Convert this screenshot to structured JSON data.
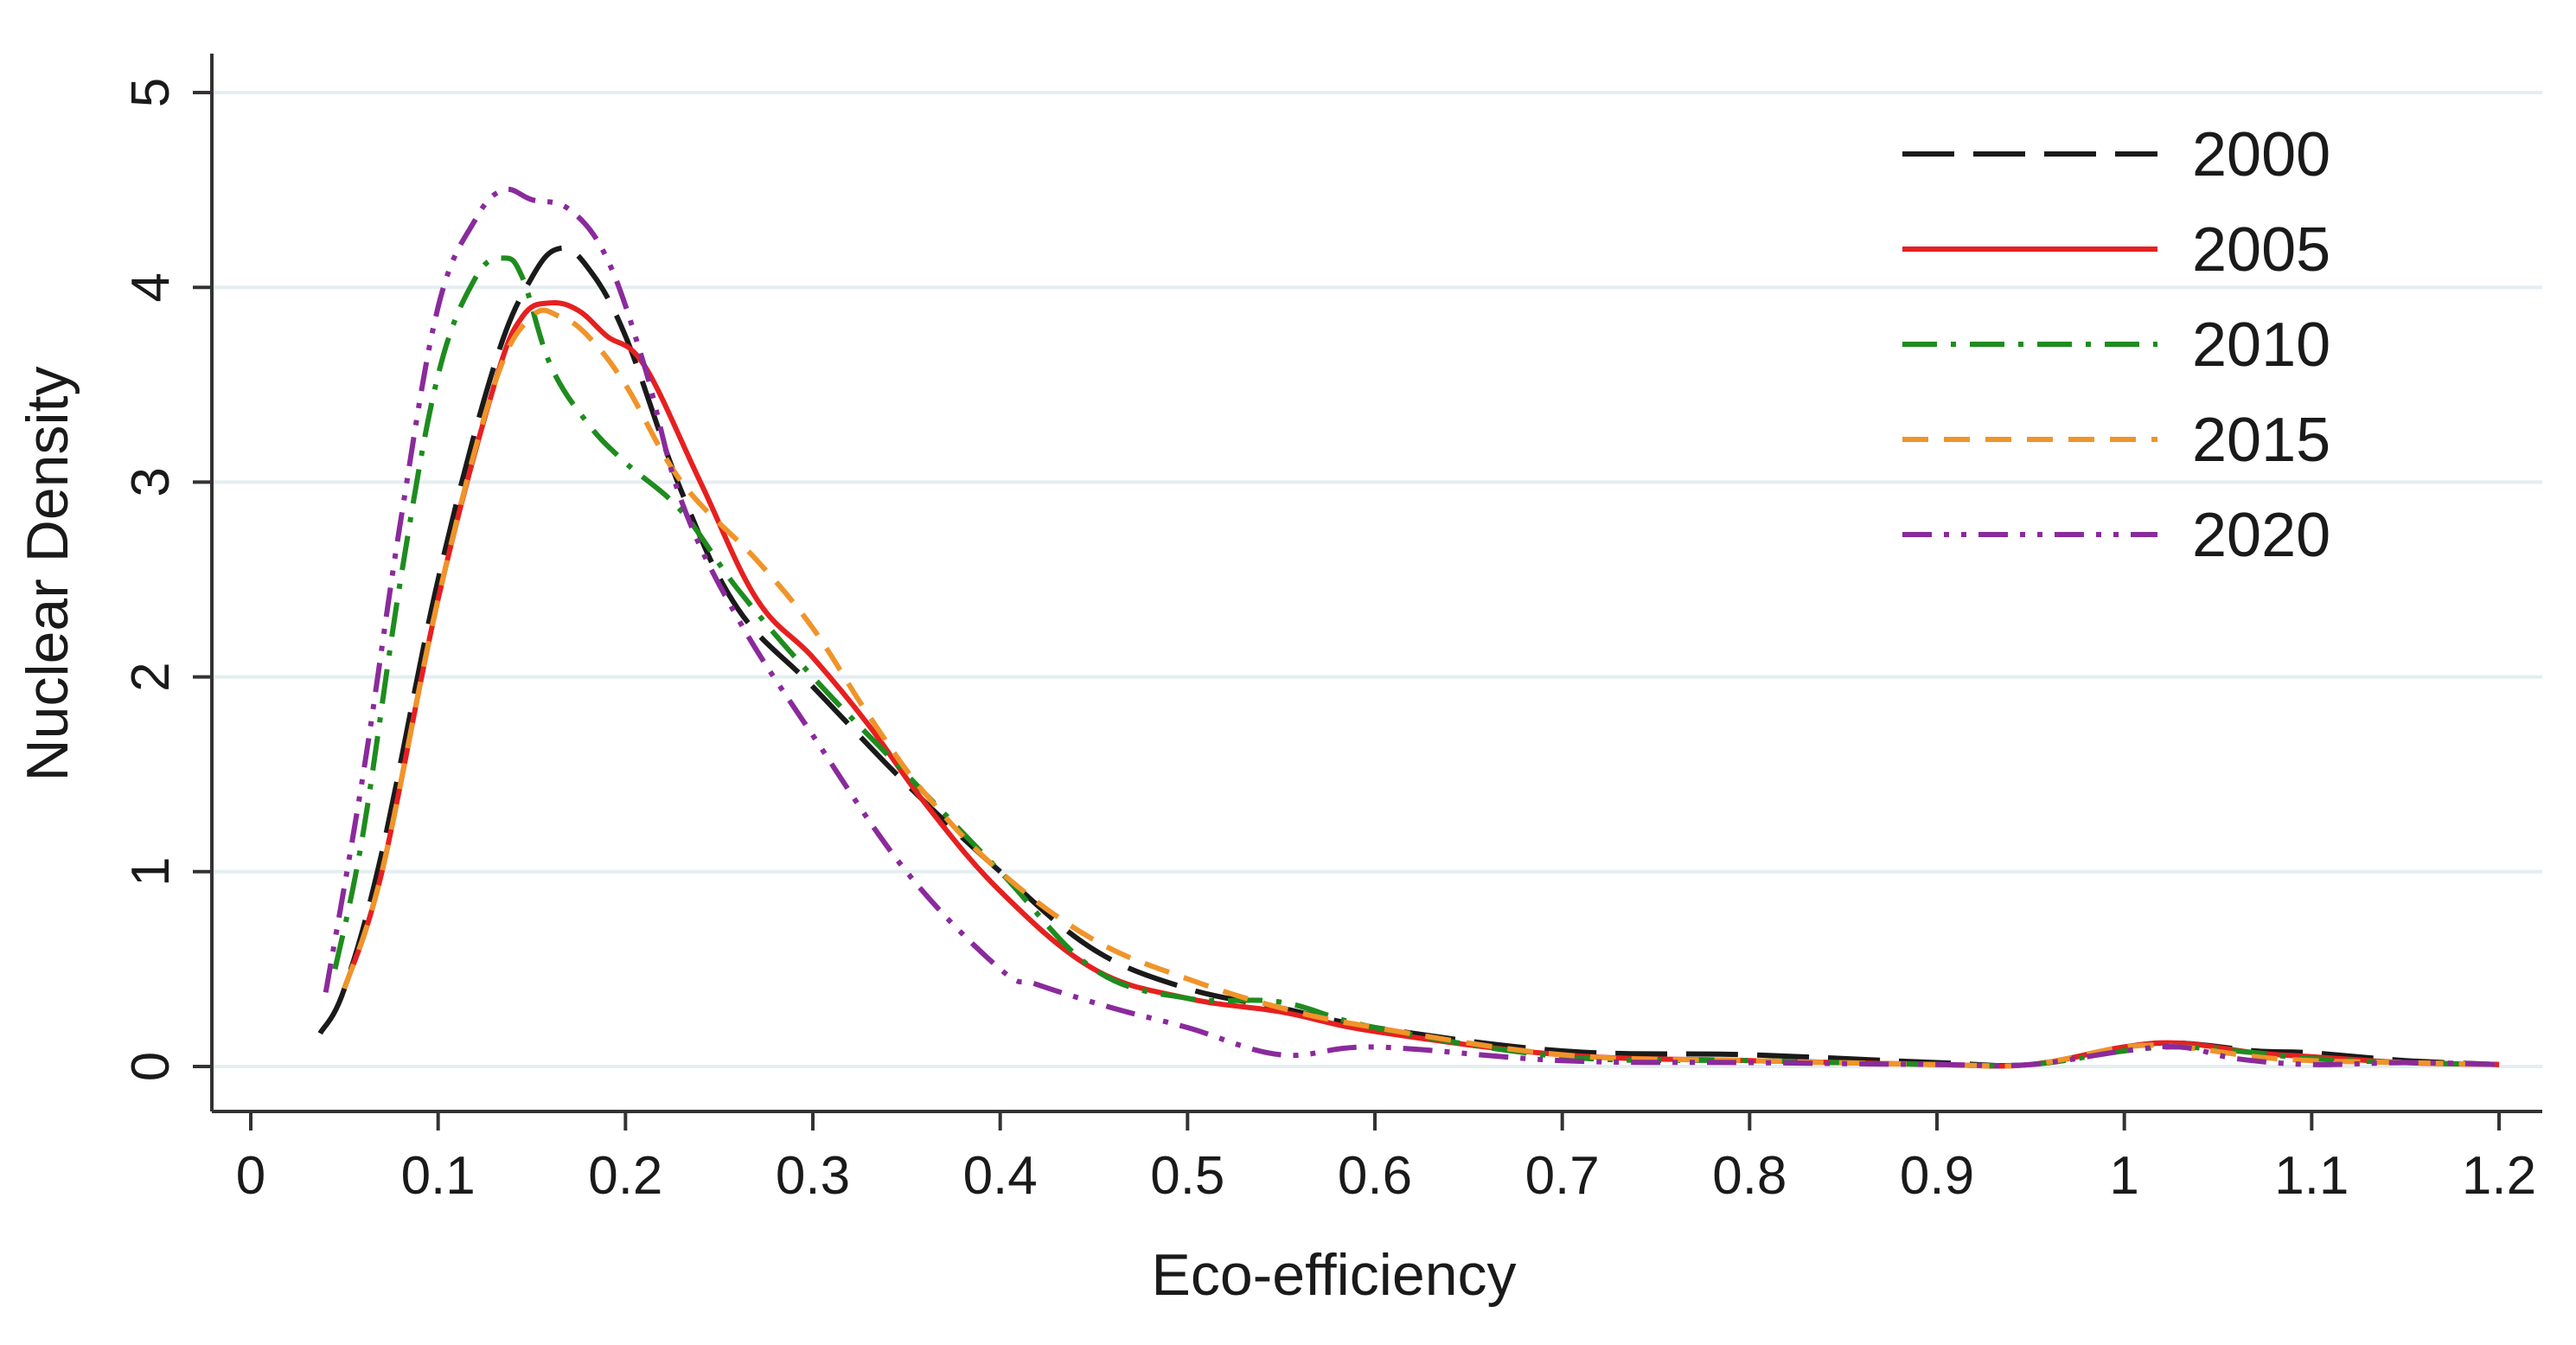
{
  "chart_data": {
    "type": "line",
    "title": "",
    "xlabel": "Eco-efficiency",
    "ylabel": "Nuclear Density",
    "xlim": [
      0,
      1.2
    ],
    "ylim": [
      0,
      5
    ],
    "xticks": [
      0,
      0.1,
      0.2,
      0.3,
      0.4,
      0.5,
      0.6,
      0.7,
      0.8,
      0.9,
      1,
      1.1,
      1.2
    ],
    "xtick_labels": [
      "0",
      "0.1",
      "0.2",
      "0.3",
      "0.4",
      "0.5",
      "0.6",
      "0.7",
      "0.8",
      "0.9",
      "1",
      "1.1",
      "1.2"
    ],
    "yticks": [
      0,
      1,
      2,
      3,
      4,
      5
    ],
    "ytick_labels": [
      "0",
      "1",
      "2",
      "3",
      "4",
      "5"
    ],
    "grid": true,
    "legend_position": "top-right",
    "series": [
      {
        "name": "2000",
        "color": "#1a1a1a",
        "dash": "long-dash",
        "x": [
          0.037,
          0.05,
          0.07,
          0.1,
          0.13,
          0.15,
          0.165,
          0.18,
          0.2,
          0.23,
          0.26,
          0.3,
          0.35,
          0.4,
          0.45,
          0.5,
          0.55,
          0.6,
          0.7,
          0.8,
          0.9,
          0.95,
          1.0,
          1.03,
          1.07,
          1.1,
          1.15,
          1.2
        ],
        "y": [
          0.17,
          0.4,
          1.1,
          2.5,
          3.6,
          4.05,
          4.2,
          4.1,
          3.75,
          2.95,
          2.35,
          1.95,
          1.45,
          1.0,
          0.6,
          0.4,
          0.3,
          0.2,
          0.08,
          0.06,
          0.02,
          0.01,
          0.1,
          0.12,
          0.08,
          0.07,
          0.03,
          0.01
        ]
      },
      {
        "name": "2005",
        "color": "#e62020",
        "dash": "solid",
        "x": [
          0.05,
          0.07,
          0.1,
          0.13,
          0.145,
          0.16,
          0.175,
          0.19,
          0.21,
          0.24,
          0.27,
          0.3,
          0.33,
          0.36,
          0.4,
          0.45,
          0.5,
          0.55,
          0.6,
          0.7,
          0.8,
          0.9,
          0.95,
          1.0,
          1.03,
          1.07,
          1.1,
          1.15,
          1.2
        ],
        "y": [
          0.4,
          1.0,
          2.4,
          3.5,
          3.85,
          3.92,
          3.88,
          3.75,
          3.6,
          3.0,
          2.4,
          2.1,
          1.75,
          1.35,
          0.9,
          0.5,
          0.35,
          0.28,
          0.18,
          0.06,
          0.03,
          0.01,
          0.01,
          0.1,
          0.12,
          0.07,
          0.05,
          0.02,
          0.01
        ]
      },
      {
        "name": "2010",
        "color": "#1e8c1e",
        "dash": "dash-dot",
        "x": [
          0.045,
          0.06,
          0.08,
          0.1,
          0.12,
          0.135,
          0.145,
          0.16,
          0.18,
          0.2,
          0.23,
          0.26,
          0.3,
          0.35,
          0.4,
          0.45,
          0.5,
          0.55,
          0.6,
          0.7,
          0.8,
          0.9,
          0.95,
          1.0,
          1.03,
          1.07,
          1.1,
          1.15,
          1.2
        ],
        "y": [
          0.5,
          1.2,
          2.5,
          3.55,
          4.05,
          4.15,
          4.05,
          3.6,
          3.3,
          3.1,
          2.85,
          2.45,
          2.0,
          1.5,
          1.0,
          0.5,
          0.35,
          0.33,
          0.2,
          0.05,
          0.03,
          0.01,
          0.01,
          0.08,
          0.1,
          0.07,
          0.04,
          0.02,
          0.01
        ]
      },
      {
        "name": "2015",
        "color": "#f0942a",
        "dash": "short-dash",
        "x": [
          0.05,
          0.07,
          0.1,
          0.13,
          0.15,
          0.165,
          0.18,
          0.2,
          0.23,
          0.27,
          0.3,
          0.33,
          0.36,
          0.4,
          0.45,
          0.5,
          0.55,
          0.6,
          0.7,
          0.8,
          0.9,
          0.95,
          1.0,
          1.03,
          1.07,
          1.1,
          1.15,
          1.2
        ],
        "y": [
          0.4,
          1.0,
          2.4,
          3.5,
          3.85,
          3.85,
          3.75,
          3.5,
          3.0,
          2.6,
          2.25,
          1.8,
          1.4,
          1.0,
          0.65,
          0.45,
          0.3,
          0.2,
          0.06,
          0.03,
          0.01,
          0.01,
          0.1,
          0.1,
          0.05,
          0.03,
          0.02,
          0.01
        ]
      },
      {
        "name": "2020",
        "color": "#8a2a9c",
        "dash": "dash-dot-dot",
        "x": [
          0.04,
          0.06,
          0.08,
          0.1,
          0.12,
          0.135,
          0.15,
          0.17,
          0.19,
          0.21,
          0.23,
          0.26,
          0.3,
          0.35,
          0.4,
          0.42,
          0.46,
          0.5,
          0.55,
          0.6,
          0.7,
          0.8,
          0.9,
          0.95,
          1.0,
          1.03,
          1.06,
          1.1,
          1.15,
          1.2
        ],
        "y": [
          0.38,
          1.5,
          2.8,
          3.9,
          4.35,
          4.5,
          4.45,
          4.4,
          4.15,
          3.6,
          2.9,
          2.3,
          1.7,
          1.0,
          0.5,
          0.42,
          0.3,
          0.2,
          0.06,
          0.1,
          0.03,
          0.02,
          0.01,
          0.01,
          0.08,
          0.1,
          0.04,
          0.01,
          0.02,
          0.01
        ]
      }
    ]
  }
}
